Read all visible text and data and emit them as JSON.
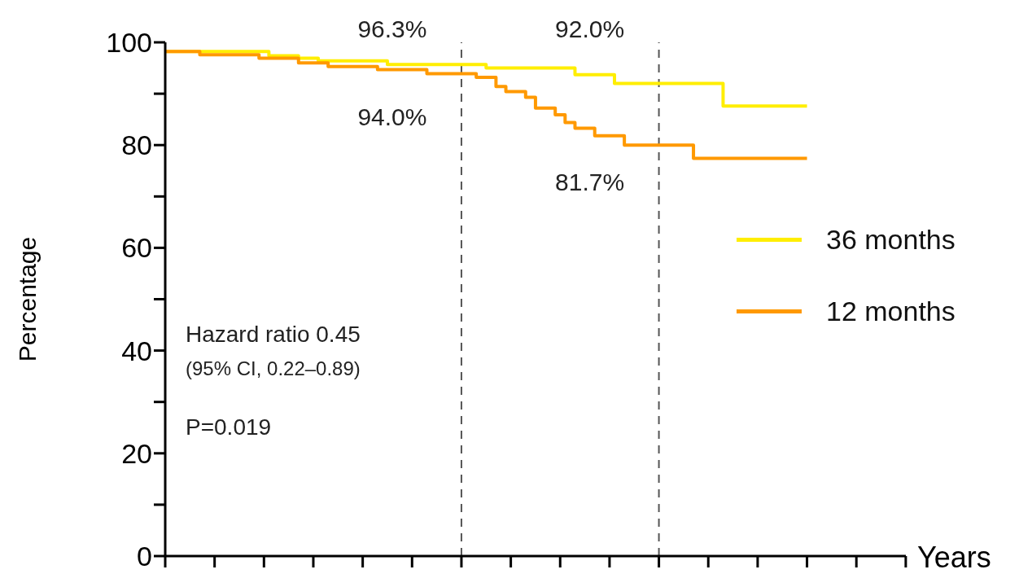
{
  "chart_data": {
    "type": "step",
    "xlabel": "Years",
    "ylabel": "Percentage",
    "categories": [
      null,
      null,
      null,
      null,
      null,
      null,
      null,
      null,
      null,
      null,
      null,
      null,
      null,
      null,
      null,
      null,
      null,
      null,
      null,
      null,
      null,
      null,
      null,
      null,
      null,
      null,
      null,
      null,
      null,
      null,
      null,
      null,
      null,
      null,
      null,
      null,
      null,
      null,
      null,
      null,
      null,
      null,
      null,
      null,
      null,
      null,
      null,
      null,
      null,
      null,
      null,
      null,
      null,
      null,
      null,
      null,
      null,
      null,
      null,
      null,
      null,
      null,
      null,
      null,
      null,
      null
    ],
    "ylim": [
      0,
      100
    ],
    "yticks": [
      0,
      {
        "value": 10,
        "label": null
      },
      20,
      {
        "value": 30,
        "label": null
      },
      40,
      {
        "value": 50,
        "label": null
      },
      60,
      {
        "value": 70,
        "label": null
      },
      80,
      {
        "value": 90,
        "label": null
      },
      100
    ],
    "series": [
      {
        "name": "36 months",
        "color": "#ffee00",
        "values": [
          98.2,
          98.2,
          98.2,
          98.2,
          98.2,
          98.2,
          98.2,
          98.2,
          98.2,
          98.2,
          98.2,
          97.4,
          97.4,
          97.4,
          96.9,
          96.9,
          96.4,
          96.4,
          96.4,
          96.4,
          96.4,
          96.4,
          96.4,
          95.7,
          95.7,
          95.7,
          95.7,
          95.7,
          95.7,
          95.7,
          95.7,
          95.7,
          95.7,
          95.0,
          95.0,
          95.0,
          95.0,
          95.0,
          95.0,
          95.0,
          95.0,
          95.0,
          93.7,
          93.7,
          93.7,
          93.7,
          92.0,
          92.0,
          92.0,
          92.0,
          92.0,
          92.0,
          92.0,
          92.0,
          92.0,
          92.0,
          92.0,
          87.6,
          87.6,
          87.6,
          87.6,
          87.6,
          87.6,
          87.6,
          87.6,
          87.6
        ]
      },
      {
        "name": "12 months",
        "color": "#ff9900",
        "values": [
          98.2,
          98.2,
          98.2,
          98.2,
          97.6,
          97.6,
          97.6,
          97.6,
          97.6,
          97.6,
          96.9,
          96.9,
          96.9,
          96.9,
          96.0,
          96.0,
          96.0,
          95.3,
          95.3,
          95.3,
          95.3,
          95.3,
          94.7,
          94.7,
          94.7,
          94.7,
          94.7,
          93.9,
          93.9,
          93.9,
          93.9,
          93.9,
          93.2,
          93.2,
          91.4,
          90.4,
          90.4,
          89.3,
          87.2,
          87.2,
          85.9,
          84.4,
          83.3,
          83.3,
          81.8,
          81.8,
          81.8,
          80.0,
          80.0,
          80.0,
          80.0,
          80.0,
          80.0,
          80.0,
          77.4,
          77.4,
          77.4,
          77.4,
          77.4,
          77.4,
          77.4,
          77.4,
          77.4,
          77.4,
          77.4,
          77.4
        ]
      }
    ],
    "annotations": [
      "96.3%",
      "94.0%",
      "92.0%",
      "81.7%",
      "Hazard ratio 0.45",
      "(95% CI, 0.22–0.89)",
      "P=0.019"
    ],
    "legend": "right",
    "grid": false,
    "marker": "none",
    "line_style": "solid"
  }
}
